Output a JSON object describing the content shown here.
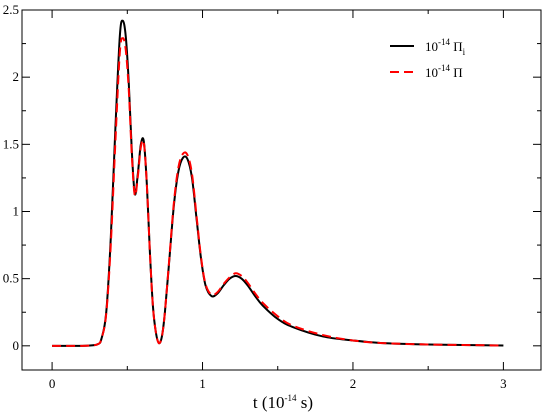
{
  "chart_data": {
    "type": "line",
    "xlabel": {
      "prefix": "t (10",
      "exp": "-14",
      "suffix": " s)"
    },
    "ylabel": "",
    "xlim": [
      -0.2,
      3.25
    ],
    "ylim": [
      -0.18,
      2.5
    ],
    "xticks": [
      0,
      1,
      2,
      3
    ],
    "xtick_labels": [
      "0",
      "1",
      "2",
      "3"
    ],
    "yticks": [
      0,
      0.5,
      1,
      1.5,
      2,
      2.5
    ],
    "ytick_labels": [
      "0",
      "0.5",
      "1",
      "1.5",
      "2",
      "2.5"
    ],
    "grid": false,
    "legend_position": "top-right",
    "series": [
      {
        "name": {
          "prefix": "10",
          "exp": "-14",
          "main": " Π",
          "sub": "i"
        },
        "color": "#000000",
        "dash": "solid",
        "x": [
          0,
          0.2,
          0.3,
          0.33,
          0.36,
          0.39,
          0.42,
          0.45,
          0.47,
          0.49,
          0.51,
          0.53,
          0.55,
          0.57,
          0.59,
          0.61,
          0.63,
          0.65,
          0.67,
          0.69,
          0.71,
          0.73,
          0.75,
          0.78,
          0.81,
          0.84,
          0.87,
          0.9,
          0.93,
          0.96,
          0.99,
          1.02,
          1.06,
          1.1,
          1.14,
          1.18,
          1.22,
          1.26,
          1.3,
          1.35,
          1.4,
          1.5,
          1.6,
          1.8,
          2.0,
          2.2,
          2.5,
          2.8,
          3.0
        ],
        "y": [
          0,
          0,
          0.01,
          0.06,
          0.25,
          0.8,
          1.6,
          2.3,
          2.42,
          2.3,
          1.95,
          1.45,
          1.13,
          1.28,
          1.5,
          1.52,
          1.2,
          0.7,
          0.3,
          0.1,
          0.02,
          0.07,
          0.25,
          0.65,
          1.05,
          1.3,
          1.4,
          1.39,
          1.25,
          0.95,
          0.65,
          0.45,
          0.37,
          0.39,
          0.45,
          0.5,
          0.52,
          0.5,
          0.45,
          0.37,
          0.3,
          0.2,
          0.14,
          0.07,
          0.04,
          0.02,
          0.01,
          0.005,
          0.002
        ]
      },
      {
        "name": {
          "prefix": "10",
          "exp": "-14",
          "main": " Π",
          "sub": ""
        },
        "color": "#ff0000",
        "dash": "dashed",
        "x": [
          0,
          0.2,
          0.3,
          0.33,
          0.36,
          0.39,
          0.42,
          0.45,
          0.47,
          0.49,
          0.51,
          0.53,
          0.55,
          0.57,
          0.59,
          0.61,
          0.63,
          0.65,
          0.67,
          0.69,
          0.71,
          0.73,
          0.75,
          0.78,
          0.81,
          0.84,
          0.87,
          0.9,
          0.93,
          0.96,
          0.99,
          1.02,
          1.06,
          1.1,
          1.14,
          1.18,
          1.22,
          1.26,
          1.3,
          1.35,
          1.4,
          1.5,
          1.6,
          1.8,
          2.0,
          2.2,
          2.5,
          2.8,
          3.0
        ],
        "y": [
          0,
          0,
          0.01,
          0.06,
          0.24,
          0.75,
          1.5,
          2.18,
          2.29,
          2.2,
          1.9,
          1.42,
          1.12,
          1.26,
          1.48,
          1.51,
          1.2,
          0.7,
          0.3,
          0.1,
          0.02,
          0.07,
          0.25,
          0.66,
          1.07,
          1.33,
          1.43,
          1.42,
          1.28,
          0.97,
          0.66,
          0.46,
          0.38,
          0.4,
          0.46,
          0.51,
          0.54,
          0.52,
          0.47,
          0.39,
          0.32,
          0.22,
          0.15,
          0.08,
          0.04,
          0.02,
          0.01,
          0.005,
          0.002
        ]
      }
    ]
  }
}
